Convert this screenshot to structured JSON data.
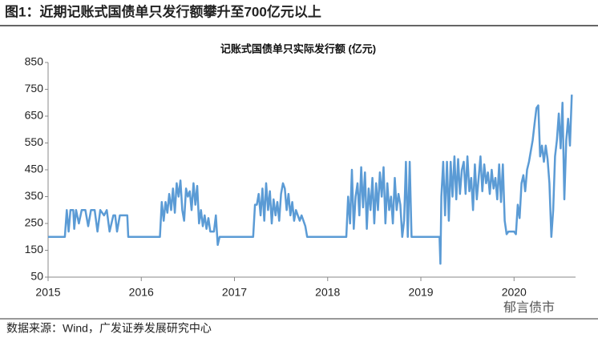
{
  "header": {
    "title": "图1：近期记账式国债单只发行额攀升至700亿元以上"
  },
  "chart_data": {
    "type": "line",
    "title": "记账式国债单只实际发行额 (亿元)",
    "xlim": [
      2015,
      2020.66
    ],
    "xticks": [
      2015,
      2016,
      2017,
      2018,
      2019,
      2020
    ],
    "ylim": [
      50,
      850
    ],
    "yticks": [
      50,
      150,
      250,
      350,
      450,
      550,
      650,
      750,
      850
    ],
    "grid": false,
    "series": [
      {
        "color": "#5b9bd5",
        "x": [
          2015.0,
          2015.18,
          2015.2,
          2015.22,
          2015.24,
          2015.27,
          2015.28,
          2015.3,
          2015.33,
          2015.36,
          2015.4,
          2015.43,
          2015.46,
          2015.5,
          2015.53,
          2015.56,
          2015.6,
          2015.63,
          2015.66,
          2015.7,
          2015.72,
          2015.74,
          2015.77,
          2015.8,
          2015.85,
          2015.86,
          2016.2,
          2016.22,
          2016.24,
          2016.26,
          2016.28,
          2016.3,
          2016.32,
          2016.34,
          2016.36,
          2016.38,
          2016.4,
          2016.42,
          2016.44,
          2016.46,
          2016.48,
          2016.5,
          2016.52,
          2016.54,
          2016.56,
          2016.58,
          2016.6,
          2016.62,
          2016.64,
          2016.66,
          2016.68,
          2016.7,
          2016.72,
          2016.74,
          2016.78,
          2016.8,
          2016.82,
          2016.84,
          2017.2,
          2017.22,
          2017.24,
          2017.26,
          2017.28,
          2017.3,
          2017.32,
          2017.34,
          2017.36,
          2017.38,
          2017.4,
          2017.42,
          2017.44,
          2017.46,
          2017.48,
          2017.5,
          2017.52,
          2017.54,
          2017.56,
          2017.58,
          2017.6,
          2017.62,
          2017.64,
          2017.66,
          2017.7,
          2017.72,
          2017.76,
          2017.78,
          2018.2,
          2018.22,
          2018.24,
          2018.26,
          2018.28,
          2018.3,
          2018.32,
          2018.34,
          2018.36,
          2018.38,
          2018.4,
          2018.42,
          2018.44,
          2018.46,
          2018.48,
          2018.5,
          2018.52,
          2018.54,
          2018.56,
          2018.58,
          2018.6,
          2018.62,
          2018.64,
          2018.66,
          2018.68,
          2018.7,
          2018.72,
          2018.74,
          2018.76,
          2018.78,
          2018.8,
          2018.82,
          2018.84,
          2018.86,
          2018.88,
          2018.9,
          2019.2,
          2019.21,
          2019.22,
          2019.24,
          2019.26,
          2019.28,
          2019.3,
          2019.32,
          2019.34,
          2019.36,
          2019.38,
          2019.4,
          2019.42,
          2019.44,
          2019.46,
          2019.48,
          2019.5,
          2019.52,
          2019.54,
          2019.56,
          2019.58,
          2019.6,
          2019.62,
          2019.64,
          2019.66,
          2019.68,
          2019.7,
          2019.72,
          2019.74,
          2019.76,
          2019.78,
          2019.8,
          2019.82,
          2019.84,
          2019.86,
          2019.88,
          2019.9,
          2019.92,
          2019.94,
          2020.0,
          2020.02,
          2020.04,
          2020.06,
          2020.08,
          2020.1,
          2020.12,
          2020.14,
          2020.16,
          2020.18,
          2020.2,
          2020.22,
          2020.24,
          2020.26,
          2020.28,
          2020.3,
          2020.32,
          2020.34,
          2020.36,
          2020.38,
          2020.4,
          2020.42,
          2020.44,
          2020.46,
          2020.48,
          2020.5,
          2020.52,
          2020.54,
          2020.56,
          2020.58,
          2020.6,
          2020.62
        ],
        "values": [
          200,
          200,
          300,
          220,
          300,
          300,
          230,
          300,
          250,
          300,
          300,
          240,
          300,
          300,
          220,
          300,
          280,
          300,
          220,
          280,
          280,
          220,
          280,
          280,
          280,
          200,
          200,
          330,
          260,
          330,
          290,
          360,
          300,
          380,
          290,
          400,
          350,
          410,
          300,
          260,
          380,
          350,
          370,
          300,
          400,
          320,
          390,
          250,
          300,
          240,
          280,
          230,
          270,
          220,
          220,
          280,
          170,
          200,
          200,
          320,
          320,
          360,
          280,
          380,
          260,
          400,
          300,
          370,
          250,
          340,
          280,
          330,
          260,
          360,
          400,
          380,
          300,
          360,
          280,
          330,
          260,
          300,
          260,
          280,
          240,
          200,
          200,
          350,
          250,
          450,
          230,
          350,
          400,
          280,
          460,
          310,
          440,
          230,
          380,
          300,
          420,
          250,
          400,
          300,
          440,
          350,
          460,
          250,
          400,
          300,
          350,
          250,
          420,
          300,
          360,
          320,
          200,
          260,
          480,
          200,
          480,
          200,
          200,
          100,
          350,
          480,
          280,
          480,
          260,
          480,
          350,
          500,
          340,
          490,
          360,
          450,
          480,
          360,
          500,
          370,
          420,
          300,
          470,
          340,
          420,
          500,
          370,
          470,
          400,
          440,
          360,
          450,
          380,
          420,
          340,
          470,
          330,
          470,
          260,
          210,
          220,
          220,
          210,
          320,
          270,
          400,
          430,
          370,
          450,
          480,
          520,
          560,
          620,
          680,
          690,
          500,
          540,
          480,
          540,
          490,
          400,
          200,
          300,
          500,
          560,
          660,
          530,
          700,
          340,
          560,
          640,
          540,
          730
        ]
      }
    ]
  },
  "footer": {
    "source": "数据来源：Wind，广发证券发展研究中心",
    "watermark": "郁言债市"
  }
}
